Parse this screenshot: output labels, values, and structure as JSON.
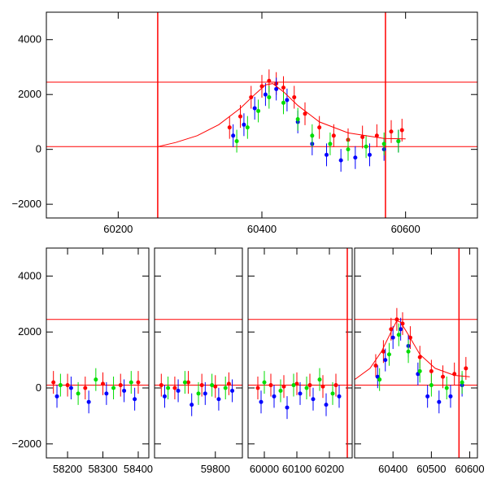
{
  "chart_data": [
    {
      "type": "scatter",
      "title": "",
      "xlabel": "",
      "ylabel": "",
      "xlim": [
        60100,
        60700
      ],
      "ylim": [
        -2500,
        5000
      ],
      "x_ticks": [
        60200,
        60400,
        60600
      ],
      "y_ticks": [
        -2000,
        0,
        2000,
        4000
      ],
      "grid": false,
      "error_bars": true,
      "reference_lines": {
        "horizontal": [
          100,
          2450
        ],
        "vertical": [
          60255,
          60572
        ]
      },
      "series": [
        {
          "color": "#ff0000",
          "x": [
            60355,
            60370,
            60385,
            60400,
            60410,
            60420,
            60430,
            60445,
            60460,
            60480,
            60500,
            60520,
            60540,
            60560,
            60580,
            60595
          ],
          "y": [
            800,
            1200,
            1900,
            2300,
            2500,
            2400,
            2250,
            1900,
            1300,
            800,
            500,
            350,
            450,
            500,
            650,
            700
          ]
        },
        {
          "color": "#0000ff",
          "x": [
            60360,
            60375,
            60390,
            60405,
            60420,
            60435,
            60450,
            60470,
            60490,
            60510,
            60530,
            60550,
            60570,
            60590
          ],
          "y": [
            500,
            900,
            1500,
            2000,
            2200,
            1800,
            1000,
            200,
            -200,
            -400,
            -300,
            -200,
            0,
            300
          ]
        },
        {
          "color": "#00dd00",
          "x": [
            60365,
            60380,
            60395,
            60410,
            60430,
            60450,
            60470,
            60495,
            60520,
            60545,
            60570,
            60590
          ],
          "y": [
            300,
            800,
            1400,
            1900,
            1700,
            1100,
            500,
            200,
            0,
            100,
            200,
            300
          ]
        }
      ],
      "model_curve": {
        "color": "#ff0000",
        "x": [
          60255,
          60280,
          60310,
          60340,
          60370,
          60390,
          60405,
          60415,
          60430,
          60450,
          60480,
          60520,
          60570,
          60600
        ],
        "y": [
          100,
          250,
          500,
          900,
          1500,
          2000,
          2350,
          2400,
          2100,
          1600,
          1000,
          600,
          400,
          380
        ]
      }
    },
    {
      "type": "scatter",
      "title": "",
      "xlabel": "",
      "ylabel": "",
      "ylim": [
        -2500,
        5000
      ],
      "y_ticks": [
        -2000,
        0,
        2000,
        4000
      ],
      "grid": false,
      "error_bars": true,
      "reference_lines": {
        "horizontal": [
          100,
          2450
        ]
      },
      "segments": [
        {
          "xlim": [
            58140,
            58430
          ],
          "x_ticks": [
            58200,
            58300,
            58400
          ],
          "vertical_lines": [],
          "series": [
            {
              "color": "#ff0000",
              "x": [
                58160,
                58200,
                58250,
                58300,
                58350,
                58400
              ],
              "y": [
                200,
                100,
                0,
                150,
                100,
                200
              ]
            },
            {
              "color": "#0000ff",
              "x": [
                58170,
                58210,
                58260,
                58310,
                58360,
                58390
              ],
              "y": [
                -300,
                0,
                -500,
                -200,
                -100,
                -400
              ]
            },
            {
              "color": "#00dd00",
              "x": [
                58180,
                58230,
                58280,
                58330,
                58380
              ],
              "y": [
                100,
                -200,
                300,
                0,
                200
              ]
            }
          ]
        },
        {
          "xlim": [
            59620,
            59880
          ],
          "x_ticks": [
            59800
          ],
          "vertical_lines": [],
          "series": [
            {
              "color": "#ff0000",
              "x": [
                59640,
                59680,
                59720,
                59760,
                59800,
                59840
              ],
              "y": [
                100,
                0,
                200,
                100,
                50,
                150
              ]
            },
            {
              "color": "#0000ff",
              "x": [
                59650,
                59690,
                59730,
                59770,
                59810,
                59850
              ],
              "y": [
                -300,
                -100,
                -600,
                -200,
                -400,
                -100
              ]
            },
            {
              "color": "#00dd00",
              "x": [
                59660,
                59710,
                59750,
                59790,
                59830
              ],
              "y": [
                0,
                200,
                -200,
                100,
                0
              ]
            }
          ]
        },
        {
          "xlim": [
            59950,
            60270
          ],
          "x_ticks": [
            60000,
            60100,
            60200
          ],
          "vertical_lines": [
            60255
          ],
          "series": [
            {
              "color": "#ff0000",
              "x": [
                59980,
                60020,
                60060,
                60100,
                60140,
                60180,
                60220
              ],
              "y": [
                0,
                100,
                50,
                150,
                100,
                50,
                100
              ]
            },
            {
              "color": "#0000ff",
              "x": [
                59990,
                60030,
                60070,
                60110,
                60150,
                60190,
                60230
              ],
              "y": [
                -500,
                -300,
                -700,
                -200,
                -400,
                -600,
                -300
              ]
            },
            {
              "color": "#00dd00",
              "x": [
                60000,
                60050,
                60090,
                60130,
                60170,
                60210
              ],
              "y": [
                200,
                -100,
                100,
                0,
                300,
                -200
              ]
            }
          ]
        },
        {
          "xlim": [
            60300,
            60620
          ],
          "x_ticks": [
            60400,
            60500,
            60600
          ],
          "vertical_lines": [
            60572
          ],
          "series": [
            {
              "color": "#ff0000",
              "x": [
                60355,
                60375,
                60395,
                60410,
                60425,
                60445,
                60470,
                60500,
                60530,
                60560,
                60590
              ],
              "y": [
                800,
                1300,
                2100,
                2450,
                2300,
                1800,
                1100,
                600,
                400,
                500,
                700
              ]
            },
            {
              "color": "#0000ff",
              "x": [
                60360,
                60380,
                60400,
                60420,
                60440,
                60465,
                60490,
                60520,
                60550,
                60580
              ],
              "y": [
                400,
                1000,
                1800,
                2100,
                1500,
                500,
                -300,
                -500,
                -300,
                100
              ]
            },
            {
              "color": "#00dd00",
              "x": [
                60365,
                60390,
                60415,
                60440,
                60470,
                60500,
                60540,
                60580
              ],
              "y": [
                300,
                1200,
                1900,
                1300,
                600,
                100,
                0,
                200
              ]
            }
          ]
        }
      ],
      "model_curve": {
        "color": "#ff0000",
        "x": [
          60255,
          60300,
          60340,
          60370,
          60395,
          60410,
          60420,
          60440,
          60470,
          60510,
          60560,
          60600
        ],
        "y": [
          100,
          300,
          700,
          1300,
          2000,
          2400,
          2350,
          1900,
          1200,
          700,
          450,
          400
        ]
      }
    }
  ]
}
